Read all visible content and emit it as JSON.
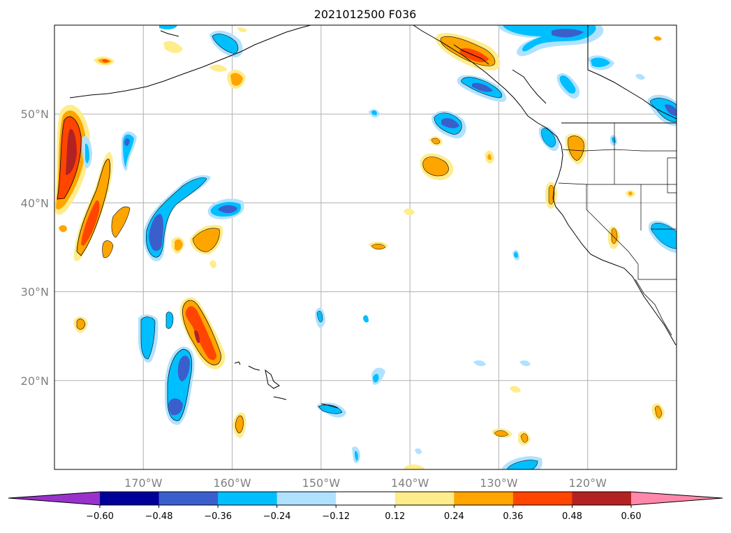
{
  "title": "2021012500 F036",
  "map": {
    "lat_ticks": [
      {
        "value": 50,
        "label": "50°N"
      },
      {
        "value": 40,
        "label": "40°N"
      },
      {
        "value": 30,
        "label": "30°N"
      },
      {
        "value": 20,
        "label": "20°N"
      }
    ],
    "lon_ticks": [
      {
        "value": -170,
        "label": "170°W"
      },
      {
        "value": -160,
        "label": "160°W"
      },
      {
        "value": -150,
        "label": "150°W"
      },
      {
        "value": -140,
        "label": "140°W"
      },
      {
        "value": -130,
        "label": "130°W"
      },
      {
        "value": -120,
        "label": "120°W"
      }
    ],
    "extent": {
      "lon_min": -180,
      "lon_max": -110,
      "lat_min": 10,
      "lat_max": 60
    },
    "gridlines": true,
    "coastline_color": "#000000"
  },
  "colorbar": {
    "orientation": "horizontal",
    "extend": "both",
    "under_color": "#9932cc",
    "over_color": "#ff88aa",
    "bins": [
      {
        "color": "#000099"
      },
      {
        "color": "#3a5fcd"
      },
      {
        "color": "#00bfff"
      },
      {
        "color": "#b0e2ff"
      },
      {
        "color": "#ffffff"
      },
      {
        "color": "#ffec8b"
      },
      {
        "color": "#ffa500"
      },
      {
        "color": "#ff4500"
      },
      {
        "color": "#b22222"
      }
    ],
    "ticks": [
      "−0.60",
      "−0.48",
      "−0.36",
      "−0.24",
      "−0.12",
      "0.12",
      "0.24",
      "0.36",
      "0.48",
      "0.60"
    ]
  }
}
